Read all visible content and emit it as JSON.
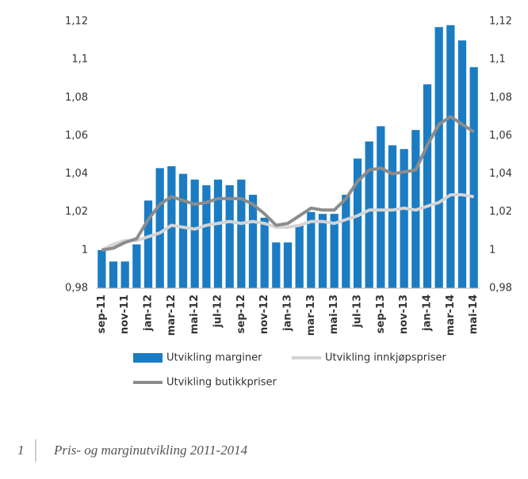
{
  "chart_data": {
    "type": "bar",
    "categories": [
      "sep-11",
      null,
      "nov-11",
      null,
      "jan-12",
      null,
      "mar-12",
      null,
      "mai-12",
      null,
      "jul-12",
      null,
      "sep-12",
      null,
      "nov-12",
      null,
      "jan-13",
      null,
      "mar-13",
      null,
      "mai-13",
      null,
      "jul-13",
      null,
      "sep-13",
      null,
      "nov-13",
      null,
      "jan-14",
      null,
      "mar-14",
      null,
      "mai-14"
    ],
    "series": [
      {
        "name": "Utvikling marginer",
        "type": "bar",
        "color": "#1b7cc3",
        "values": [
          1.0,
          0.994,
          0.994,
          1.003,
          1.026,
          1.043,
          1.044,
          1.04,
          1.037,
          1.034,
          1.037,
          1.034,
          1.037,
          1.029,
          1.017,
          1.004,
          1.004,
          1.013,
          1.02,
          1.019,
          1.019,
          1.029,
          1.048,
          1.057,
          1.065,
          1.055,
          1.053,
          1.063,
          1.087,
          1.117,
          1.118,
          1.11,
          1.096
        ]
      },
      {
        "name": "Utvikling innkjøpspriser",
        "type": "line",
        "color": "#d4d4d4",
        "values": [
          1.0,
          1.003,
          1.005,
          1.005,
          1.007,
          1.009,
          1.013,
          1.012,
          1.011,
          1.013,
          1.014,
          1.015,
          1.014,
          1.015,
          1.014,
          1.012,
          1.012,
          1.013,
          1.015,
          1.015,
          1.014,
          1.016,
          1.018,
          1.021,
          1.021,
          1.021,
          1.022,
          1.021,
          1.023,
          1.025,
          1.029,
          1.029,
          1.028
        ]
      },
      {
        "name": "Utvikling butikkpriser",
        "type": "line",
        "color": "#8c8c8c",
        "values": [
          1.0,
          1.001,
          1.004,
          1.006,
          1.016,
          1.024,
          1.028,
          1.026,
          1.024,
          1.025,
          1.027,
          1.027,
          1.027,
          1.024,
          1.019,
          1.013,
          1.014,
          1.018,
          1.022,
          1.021,
          1.021,
          1.027,
          1.036,
          1.042,
          1.043,
          1.04,
          1.041,
          1.042,
          1.055,
          1.066,
          1.07,
          1.066,
          1.062
        ]
      }
    ],
    "ylim": [
      0.98,
      1.12
    ],
    "yticks": [
      {
        "value": 0.98,
        "label": "0,98"
      },
      1,
      {
        "value": 1.02,
        "label": "1,02"
      },
      {
        "value": 1.04,
        "label": "1,04"
      },
      {
        "value": 1.06,
        "label": "1,06"
      },
      {
        "value": 1.08,
        "label": "1,08"
      },
      {
        "value": 1.1,
        "label": "1,1"
      },
      {
        "value": 1.12,
        "label": "1,12"
      }
    ],
    "y2lim": [
      0.98,
      1.12
    ],
    "y2ticks": [
      {
        "value": 0.98,
        "label": "0,98"
      },
      1,
      {
        "value": 1.02,
        "label": "1,02"
      },
      {
        "value": 1.04,
        "label": "1,04"
      },
      {
        "value": 1.06,
        "label": "1,06"
      },
      {
        "value": 1.08,
        "label": "1,08"
      },
      {
        "value": 1.1,
        "label": "1,1"
      },
      {
        "value": 1.12,
        "label": "1,12"
      }
    ],
    "grid": false
  },
  "footer": {
    "number": "1",
    "text": "Pris- og marginutvikling 2011-2014"
  }
}
